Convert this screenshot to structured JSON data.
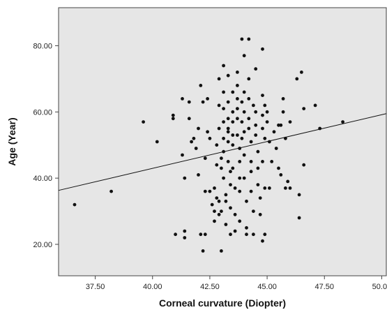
{
  "chart_data": {
    "type": "scatter",
    "xlabel": "Corneal curvature (Diopter)",
    "ylabel": "Age (Year)",
    "xlim": [
      35.9,
      50.2
    ],
    "ylim": [
      10.5,
      91.5
    ],
    "xticks": [
      37.5,
      40.0,
      42.5,
      45.0,
      47.5,
      50.0
    ],
    "xtick_labels": [
      "37.50",
      "40.00",
      "42.50",
      "45.00",
      "47.50",
      "50.00"
    ],
    "yticks": [
      20,
      40,
      60,
      80
    ],
    "ytick_labels": [
      "20.00",
      "40.00",
      "60.00",
      "80.00"
    ],
    "grid": false,
    "legend": false,
    "plot_background": "#e6e6e6",
    "point_color": "#111111",
    "line_color": "#111111",
    "fit_line": {
      "x": [
        35.9,
        50.2
      ],
      "y": [
        36.3,
        59.5
      ]
    },
    "points": [
      [
        36.6,
        32
      ],
      [
        38.2,
        36
      ],
      [
        39.6,
        57
      ],
      [
        40.2,
        51
      ],
      [
        40.9,
        59
      ],
      [
        40.9,
        58
      ],
      [
        41.0,
        23
      ],
      [
        41.3,
        64
      ],
      [
        41.3,
        47
      ],
      [
        41.4,
        40
      ],
      [
        41.4,
        24
      ],
      [
        41.4,
        22
      ],
      [
        41.6,
        63
      ],
      [
        41.6,
        58
      ],
      [
        41.7,
        51
      ],
      [
        41.8,
        52
      ],
      [
        41.9,
        49
      ],
      [
        42.0,
        55
      ],
      [
        42.0,
        41
      ],
      [
        42.1,
        23
      ],
      [
        42.1,
        68
      ],
      [
        42.2,
        63
      ],
      [
        42.2,
        18
      ],
      [
        42.3,
        23
      ],
      [
        42.3,
        36
      ],
      [
        42.3,
        46
      ],
      [
        42.4,
        64
      ],
      [
        42.4,
        54
      ],
      [
        42.5,
        52
      ],
      [
        42.5,
        36
      ],
      [
        42.6,
        32
      ],
      [
        42.7,
        37
      ],
      [
        42.7,
        30
      ],
      [
        42.7,
        27
      ],
      [
        42.8,
        50
      ],
      [
        42.8,
        44
      ],
      [
        42.8,
        34
      ],
      [
        42.9,
        70
      ],
      [
        42.9,
        62
      ],
      [
        42.9,
        55
      ],
      [
        42.9,
        33
      ],
      [
        42.9,
        29
      ],
      [
        43.0,
        46
      ],
      [
        43.0,
        43
      ],
      [
        43.0,
        30
      ],
      [
        43.0,
        18
      ],
      [
        43.1,
        74
      ],
      [
        43.1,
        66
      ],
      [
        43.1,
        61
      ],
      [
        43.1,
        57
      ],
      [
        43.1,
        52
      ],
      [
        43.1,
        48
      ],
      [
        43.1,
        40
      ],
      [
        43.2,
        35
      ],
      [
        43.2,
        33
      ],
      [
        43.2,
        26
      ],
      [
        43.3,
        71
      ],
      [
        43.3,
        63
      ],
      [
        43.3,
        58
      ],
      [
        43.3,
        55
      ],
      [
        43.3,
        54
      ],
      [
        43.3,
        51
      ],
      [
        43.3,
        45
      ],
      [
        43.4,
        42
      ],
      [
        43.4,
        38
      ],
      [
        43.4,
        31
      ],
      [
        43.4,
        23
      ],
      [
        43.5,
        66
      ],
      [
        43.5,
        60
      ],
      [
        43.5,
        57
      ],
      [
        43.5,
        53
      ],
      [
        43.5,
        50
      ],
      [
        43.5,
        43
      ],
      [
        43.6,
        37
      ],
      [
        43.6,
        29
      ],
      [
        43.6,
        24
      ],
      [
        43.7,
        72
      ],
      [
        43.7,
        68
      ],
      [
        43.7,
        64
      ],
      [
        43.7,
        61
      ],
      [
        43.7,
        58
      ],
      [
        43.7,
        53
      ],
      [
        43.8,
        49
      ],
      [
        43.8,
        45
      ],
      [
        43.8,
        40
      ],
      [
        43.8,
        36
      ],
      [
        43.8,
        27
      ],
      [
        43.9,
        82
      ],
      [
        43.9,
        63
      ],
      [
        43.9,
        57
      ],
      [
        43.9,
        52
      ],
      [
        44.0,
        77
      ],
      [
        44.0,
        66
      ],
      [
        44.0,
        60
      ],
      [
        44.0,
        54
      ],
      [
        44.0,
        47
      ],
      [
        44.0,
        40
      ],
      [
        44.1,
        33
      ],
      [
        44.1,
        25
      ],
      [
        44.1,
        23
      ],
      [
        44.2,
        82
      ],
      [
        44.2,
        70
      ],
      [
        44.2,
        64
      ],
      [
        44.2,
        58
      ],
      [
        44.2,
        55
      ],
      [
        44.3,
        51
      ],
      [
        44.3,
        45
      ],
      [
        44.3,
        42
      ],
      [
        44.3,
        36
      ],
      [
        44.4,
        23
      ],
      [
        44.4,
        30
      ],
      [
        44.4,
        62
      ],
      [
        44.5,
        73
      ],
      [
        44.5,
        60
      ],
      [
        44.5,
        56
      ],
      [
        44.5,
        53
      ],
      [
        44.6,
        48
      ],
      [
        44.6,
        43
      ],
      [
        44.6,
        38
      ],
      [
        44.7,
        34
      ],
      [
        44.7,
        29
      ],
      [
        44.8,
        79
      ],
      [
        44.8,
        65
      ],
      [
        44.8,
        59
      ],
      [
        44.8,
        55
      ],
      [
        44.8,
        45
      ],
      [
        44.8,
        21
      ],
      [
        44.9,
        62
      ],
      [
        44.9,
        52
      ],
      [
        44.9,
        37
      ],
      [
        44.9,
        23
      ],
      [
        45.0,
        60
      ],
      [
        45.0,
        57
      ],
      [
        45.1,
        51
      ],
      [
        45.1,
        37
      ],
      [
        45.2,
        45
      ],
      [
        45.3,
        54
      ],
      [
        45.4,
        49
      ],
      [
        45.5,
        56
      ],
      [
        45.5,
        43
      ],
      [
        45.6,
        56
      ],
      [
        45.6,
        41
      ],
      [
        45.7,
        64
      ],
      [
        45.7,
        60
      ],
      [
        45.8,
        52
      ],
      [
        45.8,
        37
      ],
      [
        45.9,
        39
      ],
      [
        46.0,
        57
      ],
      [
        46.0,
        37
      ],
      [
        46.3,
        70
      ],
      [
        46.4,
        35
      ],
      [
        46.4,
        28
      ],
      [
        46.5,
        72
      ],
      [
        46.6,
        61
      ],
      [
        46.6,
        44
      ],
      [
        47.1,
        62
      ],
      [
        47.3,
        55
      ],
      [
        48.3,
        57
      ]
    ]
  }
}
